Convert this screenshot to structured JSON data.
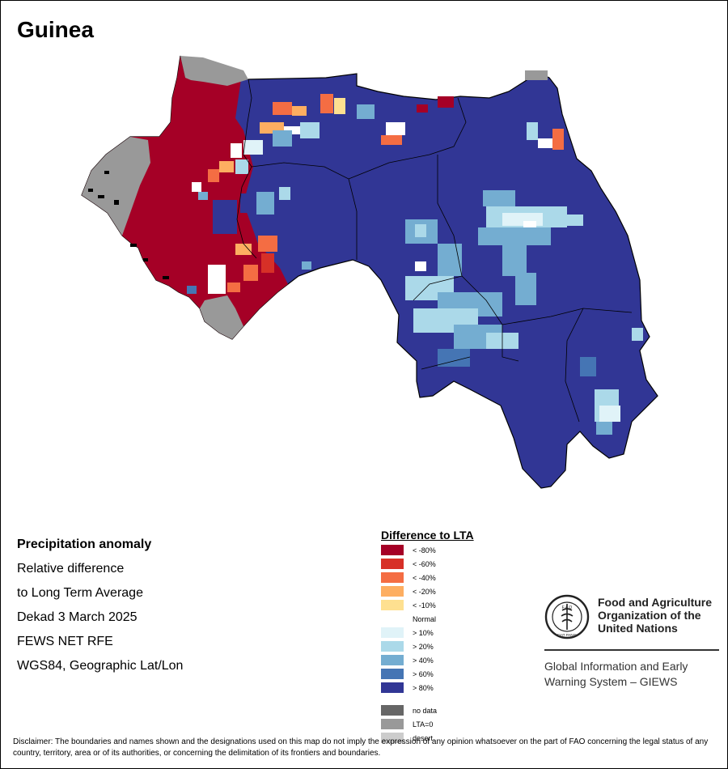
{
  "map": {
    "title": "Guinea"
  },
  "info": {
    "lines": [
      "Precipitation anomaly",
      "Relative difference",
      "to Long Term Average",
      "Dekad 3 March 2025",
      "FEWS NET RFE",
      "WGS84, Geographic Lat/Lon"
    ]
  },
  "legend": {
    "title": "Difference to LTA",
    "items": [
      {
        "label": "< -80%",
        "color": "#a50026"
      },
      {
        "label": "< -60%",
        "color": "#d73027"
      },
      {
        "label": "< -40%",
        "color": "#f46d43"
      },
      {
        "label": "< -20%",
        "color": "#fdae61"
      },
      {
        "label": "< -10%",
        "color": "#fee090"
      },
      {
        "label": "Normal",
        "color": "#ffffff"
      },
      {
        "label": "> 10%",
        "color": "#e0f3f8"
      },
      {
        "label": "> 20%",
        "color": "#abd9e9"
      },
      {
        "label": "> 40%",
        "color": "#74add1"
      },
      {
        "label": "> 60%",
        "color": "#4575b4"
      },
      {
        "label": "> 80%",
        "color": "#313695"
      },
      {
        "label": "no data",
        "color": "#666666"
      },
      {
        "label": "LTA=0",
        "color": "#999999"
      },
      {
        "label": "desert",
        "color": "#cccccc"
      }
    ]
  },
  "fao": {
    "name": "Food and Agriculture Organization of the United Nations",
    "system": "Global Information and Early Warning System – GIEWS"
  },
  "disclaimer": "Disclaimer: The boundaries and names shown and the designations used on this map do not imply the expression of any opinion whatsoever on the part of FAO concerning the legal status of any country, territory, area or of its authorities, or concerning the delimitation of its frontiers and boundaries."
}
